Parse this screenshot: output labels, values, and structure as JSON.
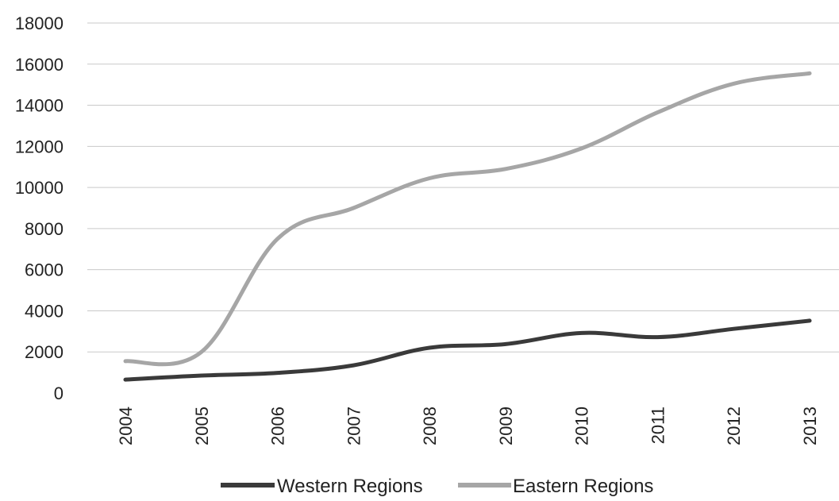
{
  "chart_data": {
    "type": "line",
    "title": "",
    "xlabel": "",
    "ylabel": "",
    "categories": [
      "2004",
      "2005",
      "2006",
      "2007",
      "2008",
      "2009",
      "2010",
      "2011",
      "2012",
      "2013"
    ],
    "ylim": [
      0,
      18000
    ],
    "yticks": [
      "0",
      "2000",
      "4000",
      "6000",
      "8000",
      "10000",
      "12000",
      "14000",
      "16000",
      "18000"
    ],
    "grid": true,
    "legend_position": "bottom",
    "series": [
      {
        "name": "Western Regions",
        "color": "#3a3a3a",
        "values": [
          650,
          850,
          980,
          1350,
          2200,
          2380,
          2920,
          2720,
          3120,
          3520
        ]
      },
      {
        "name": "Eastern Regions",
        "color": "#a6a6a6",
        "values": [
          1550,
          2000,
          7500,
          9000,
          10450,
          10900,
          11900,
          13650,
          15050,
          15550
        ]
      }
    ]
  }
}
